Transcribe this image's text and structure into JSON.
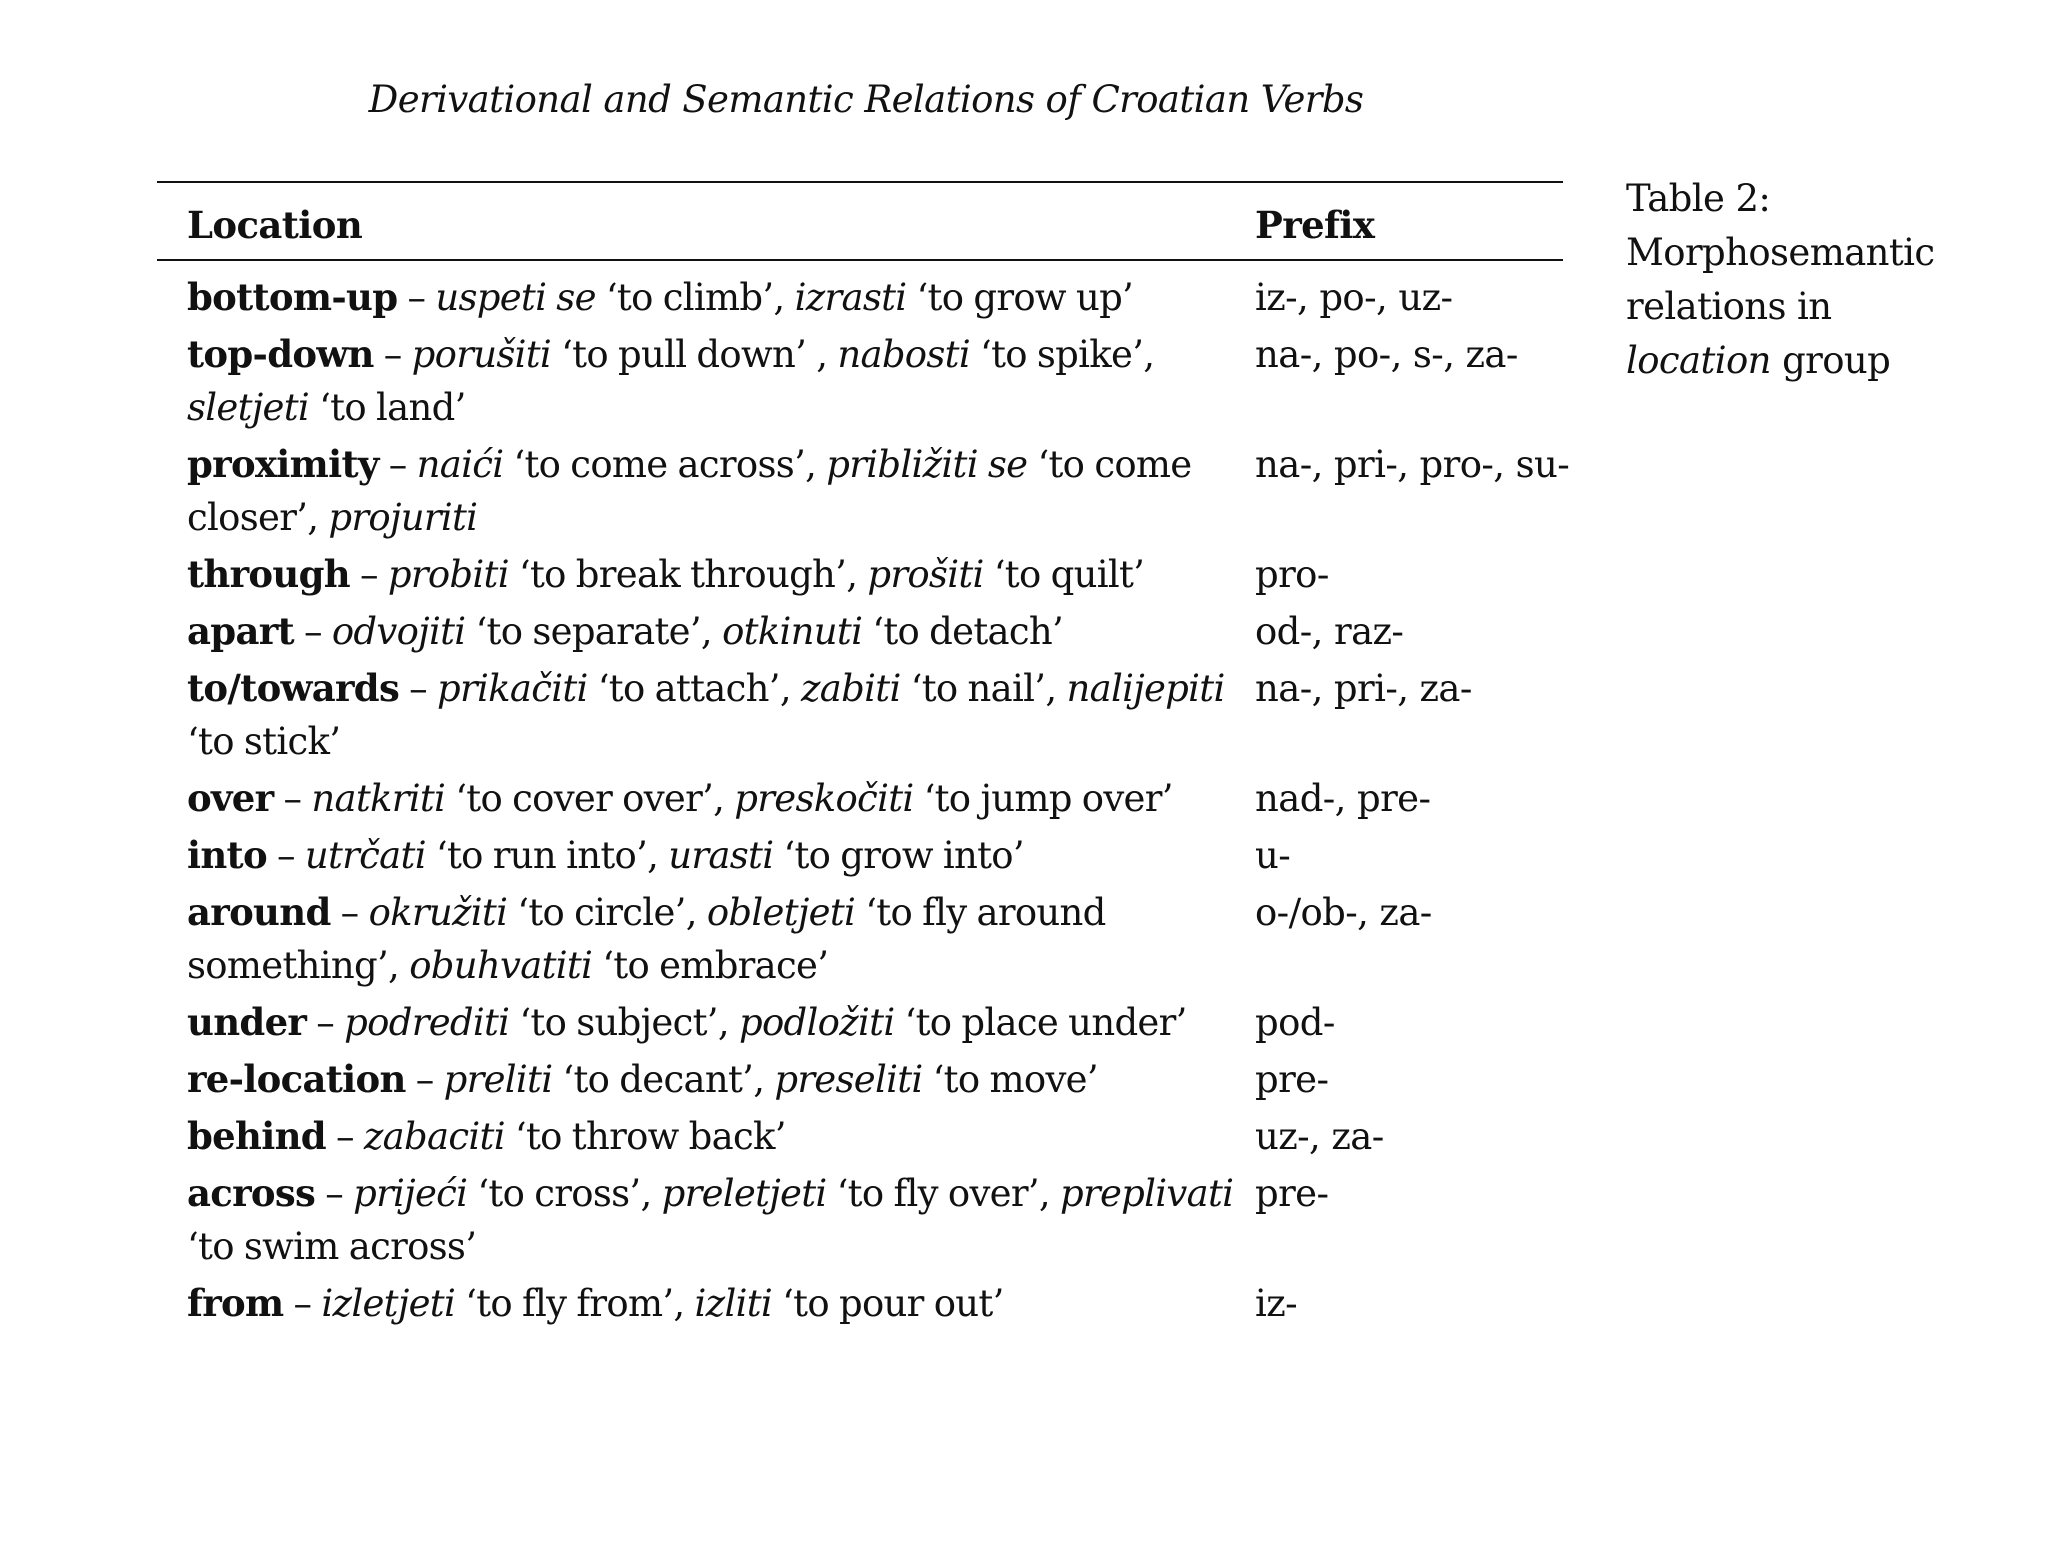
{
  "header": {
    "running_title": "Derivational and Semantic Relations of Croatian Verbs"
  },
  "table": {
    "columns": [
      "Location",
      "Prefix"
    ],
    "rows": [
      {
        "term": "bottom-up",
        "sep": " – ",
        "parts": [
          {
            "it": "uspeti se",
            "gl": " ‘to climb’, "
          },
          {
            "it": "izrasti",
            "gl": " ‘to grow up’"
          }
        ],
        "prefix": "iz-, po-, uz-"
      },
      {
        "term": "top-down",
        "sep": " – ",
        "parts": [
          {
            "it": "porušiti",
            "gl": " ‘to pull down’ , "
          },
          {
            "it": "nabosti",
            "gl": " ‘to spike’, "
          },
          {
            "it": "sletjeti",
            "gl": " ‘to land’"
          }
        ],
        "prefix": "na-, po-, s-, za-"
      },
      {
        "term": "proximity",
        "sep": " – ",
        "parts": [
          {
            "it": "naići",
            "gl": " ‘to come across’, "
          },
          {
            "it": "približiti se",
            "gl": " ‘to come closer’, "
          },
          {
            "it": "projuriti",
            "gl": ""
          }
        ],
        "prefix": "na-, pri-, pro-, su-"
      },
      {
        "term": "through",
        "sep": " – ",
        "parts": [
          {
            "it": "probiti",
            "gl": " ‘to break through’, "
          },
          {
            "it": "prošiti",
            "gl": " ‘to quilt’"
          }
        ],
        "prefix": "pro-"
      },
      {
        "term": "apart",
        "sep": " – ",
        "parts": [
          {
            "it": "odvojiti",
            "gl": " ‘to separate’, "
          },
          {
            "it": "otkinuti",
            "gl": " ‘to detach’"
          }
        ],
        "prefix": "od-, raz-"
      },
      {
        "term": "to/towards",
        "sep": " – ",
        "parts": [
          {
            "it": "prikačiti",
            "gl": " ‘to attach’, "
          },
          {
            "it": "zabiti",
            "gl": " ‘to nail’, "
          },
          {
            "it": "nalijepiti",
            "gl": " ‘to stick’"
          }
        ],
        "prefix": "na-, pri-, za-"
      },
      {
        "term": "over",
        "sep": " – ",
        "parts": [
          {
            "it": "natkriti",
            "gl": " ‘to cover over’, "
          },
          {
            "it": "preskočiti",
            "gl": " ‘to jump over’"
          }
        ],
        "prefix": "nad-, pre-"
      },
      {
        "term": "into",
        "sep": " – ",
        "parts": [
          {
            "it": "utrčati",
            "gl": " ‘to run into’, "
          },
          {
            "it": "urasti",
            "gl": " ‘to grow into’"
          }
        ],
        "prefix": "u-"
      },
      {
        "term": "around",
        "sep": " – ",
        "parts": [
          {
            "it": "okružiti",
            "gl": " ‘to circle’, "
          },
          {
            "it": "obletjeti",
            "gl": " ‘to fly around something’, "
          },
          {
            "it": "obuhvatiti",
            "gl": " ‘to embrace’"
          }
        ],
        "prefix": "o-/ob-, za-"
      },
      {
        "term": "under",
        "sep": " – ",
        "parts": [
          {
            "it": "podrediti",
            "gl": " ‘to subject’, "
          },
          {
            "it": "podložiti",
            "gl": " ‘to place under’"
          }
        ],
        "prefix": "pod-"
      },
      {
        "term": "re-location",
        "sep": " – ",
        "parts": [
          {
            "it": "preliti",
            "gl": " ‘to decant’, "
          },
          {
            "it": "preseliti",
            "gl": " ‘to move’"
          }
        ],
        "prefix": "pre-"
      },
      {
        "term": "behind",
        "sep": " – ",
        "parts": [
          {
            "it": "zabaciti",
            "gl": " ‘to throw back’"
          }
        ],
        "prefix": "uz-, za-"
      },
      {
        "term": "across",
        "sep": " – ",
        "parts": [
          {
            "it": "prijeći",
            "gl": " ‘to cross’, "
          },
          {
            "it": "preletjeti",
            "gl": " ‘to fly over’, "
          },
          {
            "it": "preplivati",
            "gl": " ‘to swim across’"
          }
        ],
        "prefix": "pre-"
      },
      {
        "term": "from",
        "sep": " – ",
        "parts": [
          {
            "it": "izletjeti",
            "gl": " ‘to fly from’, "
          },
          {
            "it": "izliti",
            "gl": " ‘to pour out’"
          }
        ],
        "prefix": "iz-"
      }
    ]
  },
  "caption": {
    "label": "Table 2:",
    "line1": "Morphosemantic",
    "line2": "relations in",
    "emph": "location",
    "tail": " group"
  }
}
